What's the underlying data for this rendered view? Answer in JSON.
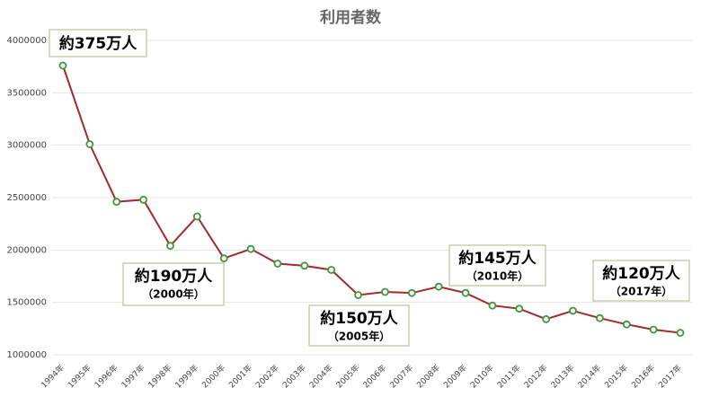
{
  "chart_data": {
    "type": "line",
    "title": "利用者数",
    "categories": [
      "1994年",
      "1995年",
      "1996年",
      "1997年",
      "1998年",
      "1999年",
      "2000年",
      "2001年",
      "2002年",
      "2003年",
      "2004年",
      "2005年",
      "2006年",
      "2007年",
      "2008年",
      "2009年",
      "2010年",
      "2011年",
      "2012年",
      "2013年",
      "2014年",
      "2015年",
      "2016年",
      "2017年"
    ],
    "series": [
      {
        "name": "利用者数",
        "color": "#a52a2a",
        "marker_color": "#3a9a3a",
        "values": [
          3760000,
          3010000,
          2460000,
          2480000,
          2040000,
          2320000,
          1920000,
          2010000,
          1870000,
          1850000,
          1810000,
          1570000,
          1600000,
          1590000,
          1650000,
          1590000,
          1470000,
          1440000,
          1340000,
          1420000,
          1350000,
          1290000,
          1240000,
          1210000
        ]
      }
    ],
    "ylim": [
      1000000,
      4000000
    ],
    "yticks": [
      1000000,
      1500000,
      2000000,
      2500000,
      3000000,
      3500000,
      4000000
    ],
    "grid": true,
    "annotations": [
      {
        "text": "約375万人"
      },
      {
        "text": "約190万人",
        "sub": "（2000年）"
      },
      {
        "text": "約150万人",
        "sub": "（2005年）"
      },
      {
        "text": "約145万人",
        "sub": "（2010年）"
      },
      {
        "text": "約120万人",
        "sub": "（2017年）"
      }
    ]
  }
}
